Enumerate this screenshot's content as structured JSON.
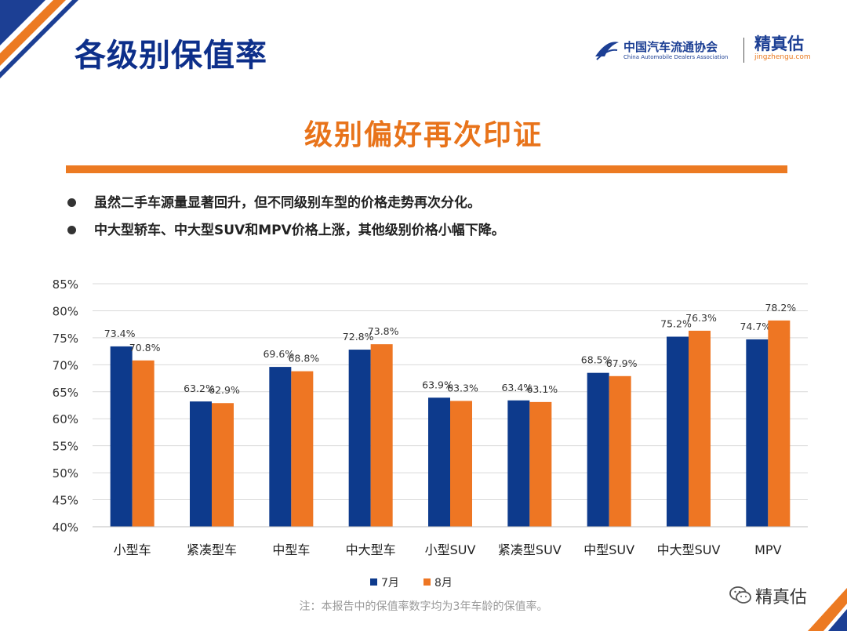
{
  "header": {
    "title": "各级别保值率",
    "association_logo_cn": "中国汽车流通协会",
    "association_logo_en": "China Automobile Dealers Association",
    "brand_logo_cn": "精真估",
    "brand_logo_url": "jingzhengu.com"
  },
  "subtitle": "级别偏好再次印证",
  "bullets": [
    "虽然二手车源量显著回升，但不同级别车型的价格走势再次分化。",
    "中大型轿车、中大型SUV和MPV价格上涨，其他级别价格小幅下降。"
  ],
  "note": "注：本报告中的保值率数字均为3年车龄的保值率。",
  "wechat_account": "精真估",
  "colors": {
    "title": "#0d2f8a",
    "subtitle": "#e8731a",
    "series_july": "#0d3a8c",
    "series_august": "#ee7623"
  },
  "chart_data": {
    "type": "bar",
    "title": "",
    "xlabel": "",
    "ylabel": "",
    "categories": [
      "小型车",
      "紧凑型车",
      "中型车",
      "中大型车",
      "小型SUV",
      "紧凑型SUV",
      "中型SUV",
      "中大型SUV",
      "MPV"
    ],
    "series": [
      {
        "name": "7月",
        "values": [
          73.4,
          63.2,
          69.6,
          72.8,
          63.9,
          63.4,
          68.5,
          75.2,
          74.7
        ],
        "labels": [
          "73.4%",
          "63.2%",
          "69.6%",
          "72.8%",
          "63.9%",
          "63.4%",
          "68.5%",
          "75.2%",
          "74.7%"
        ]
      },
      {
        "name": "8月",
        "values": [
          70.8,
          62.9,
          68.8,
          73.8,
          63.3,
          63.1,
          67.9,
          76.3,
          78.2
        ],
        "labels": [
          "70.8%",
          "62.9%",
          "68.8%",
          "73.8%",
          "63.3%",
          "63.1%",
          "67.9%",
          "76.3%",
          "78.2%"
        ]
      }
    ],
    "ylim": [
      40,
      85
    ],
    "yticks": [
      "40%",
      "45%",
      "50%",
      "55%",
      "60%",
      "65%",
      "70%",
      "75%",
      "80%",
      "85%"
    ],
    "grid": true,
    "legend_position": "bottom"
  }
}
